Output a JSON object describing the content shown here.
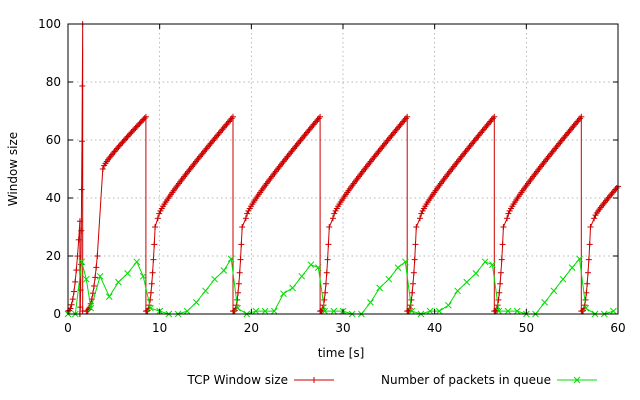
{
  "chart_data": {
    "type": "line",
    "title": "",
    "xlabel": "time [s]",
    "ylabel": "Window size",
    "xlim": [
      0,
      60
    ],
    "ylim": [
      0,
      100
    ],
    "xticks": [
      "0",
      "10",
      "20",
      "30",
      "40",
      "50",
      "60"
    ],
    "yticks": [
      "0",
      "20",
      "40",
      "60",
      "80",
      "100"
    ],
    "grid": true,
    "legend_position": "bottom",
    "series": [
      {
        "name": "TCP Window size",
        "color": "#cc0000",
        "marker": "plus",
        "cycles": [
          {
            "rise_start": [
              0.0,
              1.0
            ],
            "ramp_end": [
              1.3,
              32.0
            ],
            "drop_to": 0.0,
            "burst_peak": [
              1.6,
              100.0
            ],
            "drop_after_burst": 1.0
          },
          {
            "rise_start": [
              2.0,
              1.0
            ],
            "ramp_end": [
              3.2,
              20.0
            ],
            "linear_start": [
              3.8,
              50.0
            ],
            "linear_end": [
              8.5,
              68.0
            ]
          },
          {
            "rise_start": [
              8.6,
              1.0
            ],
            "ramp_end": [
              9.5,
              30.0
            ],
            "linear_start": [
              9.8,
              33.0
            ],
            "linear_end": [
              18.0,
              68.0
            ]
          },
          {
            "rise_start": [
              18.1,
              1.0
            ],
            "ramp_end": [
              19.0,
              30.0
            ],
            "linear_start": [
              19.4,
              33.0
            ],
            "linear_end": [
              27.5,
              68.0
            ]
          },
          {
            "rise_start": [
              27.6,
              1.0
            ],
            "ramp_end": [
              28.5,
              30.0
            ],
            "linear_start": [
              28.9,
              33.0
            ],
            "linear_end": [
              37.0,
              68.0
            ]
          },
          {
            "rise_start": [
              37.1,
              1.0
            ],
            "ramp_end": [
              38.0,
              30.0
            ],
            "linear_start": [
              38.4,
              33.0
            ],
            "linear_end": [
              46.5,
              68.0
            ]
          },
          {
            "rise_start": [
              46.6,
              1.0
            ],
            "ramp_end": [
              47.5,
              30.0
            ],
            "linear_start": [
              47.9,
              33.0
            ],
            "linear_end": [
              56.0,
              68.0
            ]
          },
          {
            "rise_start": [
              56.1,
              1.0
            ],
            "ramp_end": [
              57.0,
              30.0
            ],
            "linear_start": [
              57.4,
              33.0
            ],
            "linear_end": [
              60.0,
              44.0
            ]
          }
        ]
      },
      {
        "name": "Number of packets in queue",
        "color": "#00dd00",
        "marker": "cross",
        "x": [
          0,
          0.8,
          1.5,
          2.0,
          2.5,
          3.5,
          4.5,
          5.5,
          6.5,
          7.5,
          8.2,
          9.0,
          10.0,
          11.0,
          12.0,
          13.0,
          14.0,
          15.0,
          16.0,
          17.0,
          17.8,
          18.5,
          19.5,
          20.5,
          21.5,
          22.5,
          23.5,
          24.5,
          25.5,
          26.5,
          27.3,
          28.0,
          29.0,
          30.0,
          31.0,
          32.0,
          33.0,
          34.0,
          35.0,
          36.0,
          36.8,
          37.5,
          38.5,
          39.5,
          40.5,
          41.5,
          42.5,
          43.5,
          44.5,
          45.5,
          46.3,
          47.0,
          48.0,
          49.0,
          50.0,
          51.0,
          52.0,
          53.0,
          54.0,
          55.0,
          55.8,
          56.5,
          57.5,
          58.5,
          59.5
        ],
        "y": [
          0,
          0,
          18,
          12,
          2,
          13,
          6,
          11,
          14,
          18,
          13,
          2,
          1,
          0,
          0,
          1,
          4,
          8,
          12,
          15,
          19,
          2,
          0,
          1,
          1,
          1,
          7,
          9,
          13,
          17,
          16,
          1,
          1,
          1,
          0,
          0,
          4,
          9,
          12,
          16,
          18,
          1,
          0,
          1,
          1,
          3,
          8,
          11,
          14,
          18,
          17,
          1,
          1,
          1,
          0,
          0,
          4,
          8,
          12,
          16,
          19,
          2,
          0,
          0,
          1
        ]
      }
    ]
  }
}
